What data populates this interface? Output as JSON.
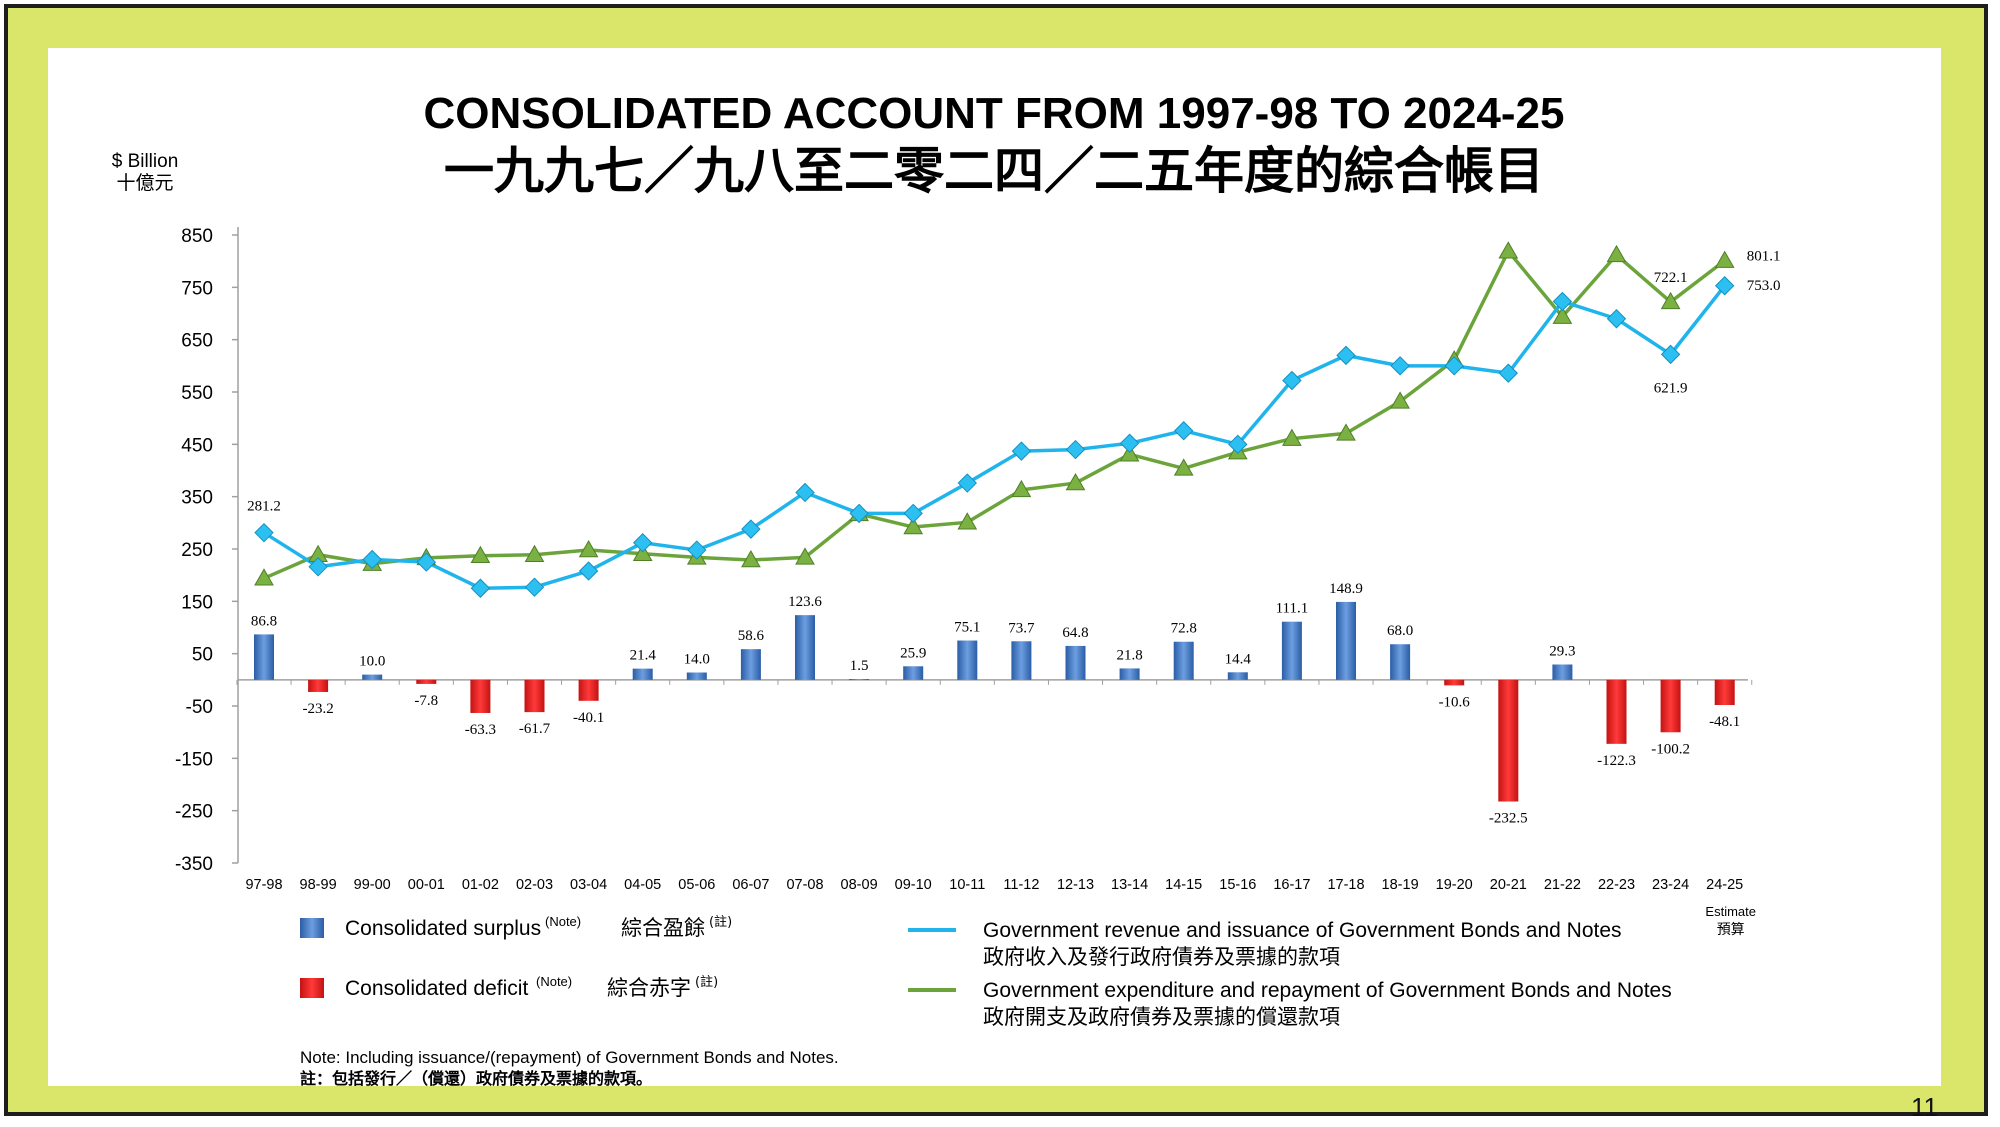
{
  "page_number": "11",
  "note": {
    "en": "Note: Including issuance/(repayment) of Government Bonds and Notes.",
    "zh": "註：包括發行／（償還）政府債券及票據的款項。"
  },
  "estimate_label": {
    "en": "Estimate",
    "zh": "預算"
  },
  "legend": {
    "surplus": {
      "en": "Consolidated surplus",
      "sup": "(Note)",
      "zh": "綜合盈餘",
      "zh_sup": "(註)",
      "color": "#3a74c4"
    },
    "deficit": {
      "en": "Consolidated deficit",
      "sup": "(Note)",
      "zh": "綜合赤字",
      "zh_sup": "(註)",
      "color": "#e81c1c"
    },
    "revenue": {
      "en": "Government revenue and issuance of Government Bonds and Notes",
      "zh": "政府收入及發行政府債券及票據的款項",
      "color": "#1fb4ec"
    },
    "expenditure": {
      "en": "Government expenditure and repayment of Government Bonds and Notes",
      "zh": "政府開支及政府債券及票據的償還款項",
      "color": "#6ca43c"
    }
  },
  "chart_data": {
    "type": "bar+line",
    "title": "CONSOLIDATED ACCOUNT FROM 1997-98 TO 2024-25",
    "subtitle": "一九九七／九八至二零二四／二五年度的綜合帳目",
    "ylabel": "$ Billion",
    "ylabel_zh": "十億元",
    "ylim": [
      -350,
      850
    ],
    "yticks": [
      850,
      750,
      650,
      550,
      450,
      350,
      250,
      150,
      50,
      -50,
      -150,
      -250,
      -350
    ],
    "categories": [
      "97-98",
      "98-99",
      "99-00",
      "00-01",
      "01-02",
      "02-03",
      "03-04",
      "04-05",
      "05-06",
      "06-07",
      "07-08",
      "08-09",
      "09-10",
      "10-11",
      "11-12",
      "12-13",
      "13-14",
      "14-15",
      "15-16",
      "16-17",
      "17-18",
      "18-19",
      "19-20",
      "20-21",
      "21-22",
      "22-23",
      "23-24",
      "24-25"
    ],
    "balance": [
      86.8,
      -23.2,
      10.0,
      -7.8,
      -63.3,
      -61.7,
      -40.1,
      21.4,
      14.0,
      58.6,
      123.6,
      1.5,
      25.9,
      75.1,
      73.7,
      64.8,
      21.8,
      72.8,
      14.4,
      111.1,
      148.9,
      68.0,
      -10.6,
      -232.5,
      29.3,
      -122.3,
      -100.2,
      -48.1
    ],
    "balance_labels": [
      "86.8",
      "-23.2",
      "10.0",
      "-7.8",
      "-63.3",
      "-61.7",
      "-40.1",
      "21.4",
      "14.0",
      "58.6",
      "123.6",
      "1.5",
      "25.9",
      "75.1",
      "73.7",
      "64.8",
      "21.8",
      "72.8",
      "14.4",
      "111.1",
      "148.9",
      "68.0",
      "-10.6",
      "-232.5",
      "29.3",
      "-122.3",
      "-100.2",
      "-48.1"
    ],
    "revenue": [
      281.2,
      216,
      230,
      225,
      175,
      177,
      208,
      262,
      248,
      288,
      358,
      318,
      318,
      376,
      437,
      440,
      452,
      476,
      450,
      572,
      620,
      600,
      600,
      586,
      723,
      690,
      621.9,
      753.0
    ],
    "expenditure": [
      194,
      239,
      222,
      233,
      237,
      239,
      248,
      241,
      234,
      229,
      234,
      317,
      292,
      301,
      363,
      376,
      431,
      404,
      435,
      461,
      471,
      532,
      611,
      819,
      694,
      812,
      722.1,
      801.1
    ],
    "line_labels": [
      {
        "series": "revenue",
        "index": 0,
        "text": "281.2"
      },
      {
        "series": "revenue",
        "index": 26,
        "text": "621.9"
      },
      {
        "series": "revenue",
        "index": 27,
        "text": "753.0"
      },
      {
        "series": "expenditure",
        "index": 26,
        "text": "722.1"
      },
      {
        "series": "expenditure",
        "index": 27,
        "text": "801.1"
      }
    ]
  }
}
